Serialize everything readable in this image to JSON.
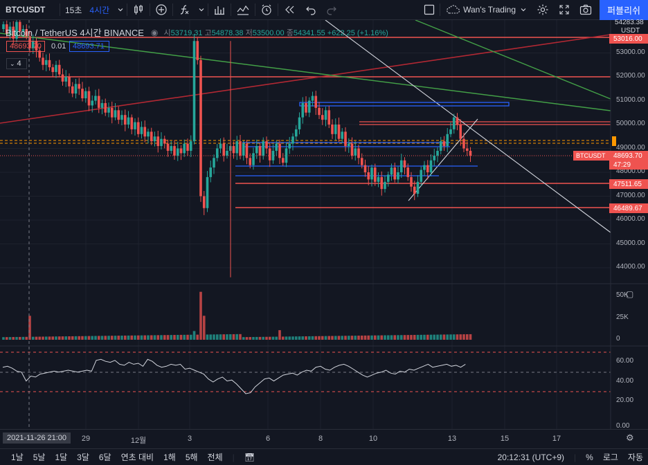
{
  "toolbar": {
    "symbol": "BTCUSDT",
    "interval_15s": "15초",
    "interval_4h": "4시간",
    "layout_name": "Wan's Trading",
    "publish": "퍼블리쉬"
  },
  "legend": {
    "title": "Bitcoin / TetherUS  4시간  BINANCE",
    "open_label": "시",
    "open": "53719.31",
    "high_label": "고",
    "high": "54878.38",
    "low_label": "저",
    "low": "53500.00",
    "close_label": "종",
    "close": "54341.55",
    "change": "+622.25 (+1.16%)",
    "bid": "48693.70",
    "spread": "0.01",
    "ask": "48693.71",
    "indicators_count": "4"
  },
  "price_axis": {
    "currency": "USDT",
    "top_label": "54283.38",
    "ticks": [
      "53000.00",
      "52000.00",
      "51000.00",
      "50000.00",
      "49000.00",
      "48000.00",
      "47000.00",
      "46000.00",
      "45000.00",
      "44000.00"
    ],
    "red_line_top": "53016.00",
    "symbol_tag": "BTCUSDT",
    "last_price": "48693.70",
    "countdown": "47:29",
    "level_1": "47511.65",
    "level_2": "46489.67"
  },
  "volume_axis": {
    "ticks": [
      "50K",
      "25K",
      "0"
    ]
  },
  "rsi_axis": {
    "ticks": [
      "60.00",
      "40.00",
      "20.00",
      "0.00"
    ]
  },
  "time_axis": {
    "cursor_label": "2021-11-26  21:00",
    "labels": [
      "29",
      "12월",
      "3",
      "6",
      "8",
      "10",
      "13",
      "15",
      "17"
    ]
  },
  "bottom": {
    "ranges": [
      "1날",
      "5날",
      "1달",
      "3달",
      "6달",
      "연초 대비",
      "1해",
      "5해",
      "전체"
    ],
    "clock": "20:12:31 (UTC+9)",
    "percent": "%",
    "log": "로그",
    "auto": "자동"
  },
  "colors": {
    "up": "#26a69a",
    "down": "#ef5350",
    "accent": "#2962ff",
    "background": "#131722"
  },
  "chart_data": {
    "type": "candlestick",
    "ylim": [
      43500,
      54300
    ],
    "volume_ylim": [
      0,
      60000
    ],
    "rsi_ylim": [
      0,
      75
    ],
    "candles": [
      [
        53700,
        54300,
        53500,
        54340
      ],
      [
        54340,
        54500,
        53800,
        53900
      ],
      [
        53900,
        54200,
        53600,
        54100
      ]
    ]
  }
}
